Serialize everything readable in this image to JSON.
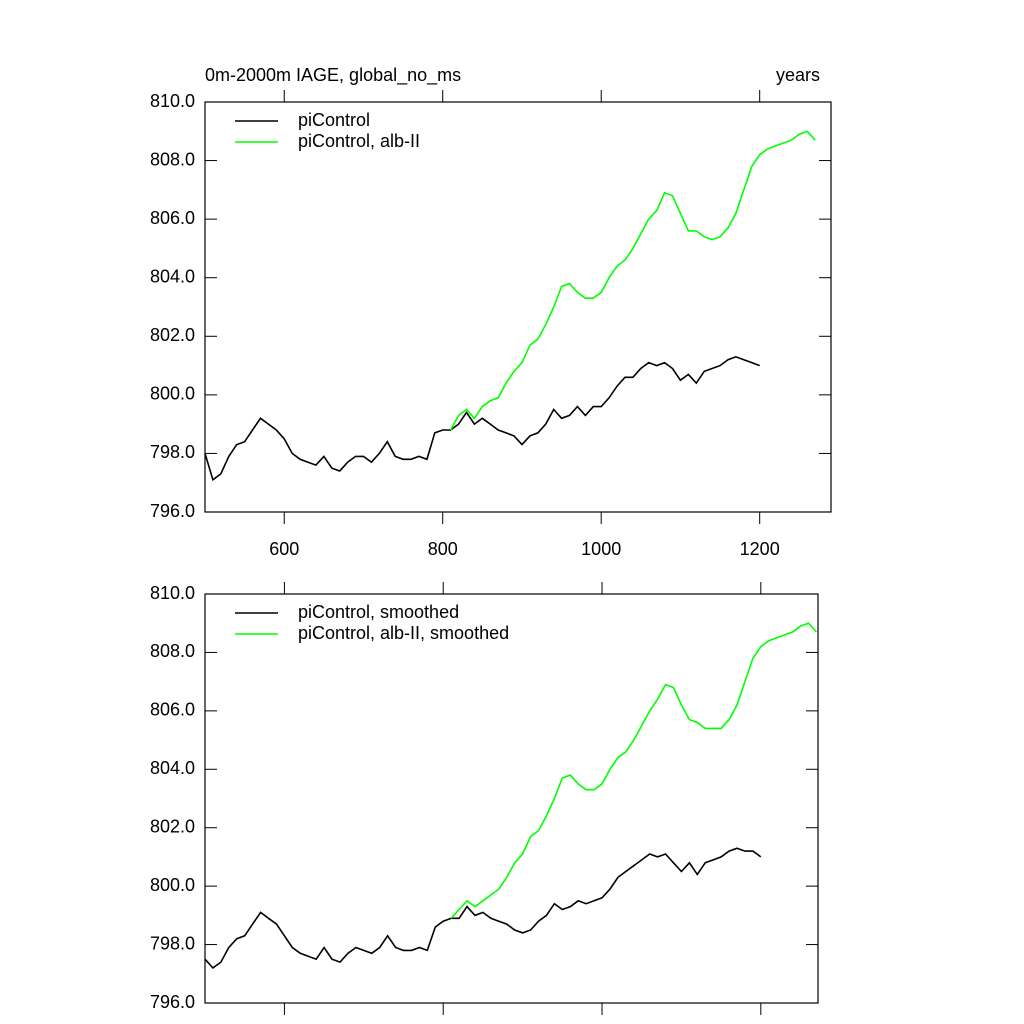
{
  "chart_data": [
    {
      "type": "line",
      "title": "0m-2000m IAGE, global_no_ms",
      "right_title": "years",
      "xlim": [
        500,
        1290
      ],
      "xticks": [
        600,
        800,
        1000,
        1200
      ],
      "xtick_labels": true,
      "ylim": [
        796,
        810
      ],
      "yticks": [
        {
          "value": 796,
          "label": "796.0"
        },
        {
          "value": 798,
          "label": "798.0"
        },
        {
          "value": 800,
          "label": "800.0"
        },
        {
          "value": 802,
          "label": "802.0"
        },
        {
          "value": 804,
          "label": "804.0"
        },
        {
          "value": 806,
          "label": "806.0"
        },
        {
          "value": 808,
          "label": "808.0"
        },
        {
          "value": 810,
          "label": "810.0"
        }
      ],
      "legend": "upper left",
      "series": [
        {
          "name": "piControl",
          "color": "#000000",
          "x": [
            500,
            510,
            520,
            530,
            540,
            550,
            560,
            570,
            580,
            590,
            600,
            610,
            620,
            630,
            640,
            650,
            660,
            670,
            680,
            690,
            700,
            710,
            720,
            730,
            740,
            750,
            760,
            770,
            780,
            790,
            800,
            810,
            820,
            830,
            840,
            850,
            860,
            870,
            880,
            890,
            900,
            910,
            920,
            930,
            940,
            950,
            960,
            970,
            980,
            990,
            1000,
            1010,
            1020,
            1030,
            1040,
            1050,
            1060,
            1070,
            1080,
            1090,
            1100,
            1110,
            1120,
            1130,
            1140,
            1150,
            1160,
            1170,
            1180,
            1190,
            1200
          ],
          "values": [
            798.0,
            797.1,
            797.3,
            797.9,
            798.3,
            798.4,
            798.8,
            799.2,
            799.0,
            798.8,
            798.5,
            798.0,
            797.8,
            797.7,
            797.6,
            797.9,
            797.5,
            797.4,
            797.7,
            797.9,
            797.9,
            797.7,
            798.0,
            798.4,
            797.9,
            797.8,
            797.8,
            797.9,
            797.8,
            798.7,
            798.8,
            798.8,
            799.0,
            799.4,
            799.0,
            799.2,
            799.0,
            798.8,
            798.7,
            798.6,
            798.3,
            798.6,
            798.7,
            799.0,
            799.5,
            799.2,
            799.3,
            799.6,
            799.3,
            799.6,
            799.6,
            799.9,
            800.3,
            800.6,
            800.6,
            800.9,
            801.1,
            801.0,
            801.1,
            800.9,
            800.5,
            800.7,
            800.4,
            800.8,
            800.9,
            801.0,
            801.2,
            801.3,
            801.2,
            801.1,
            801.0
          ]
        },
        {
          "name": "piControl, alb-II",
          "color": "#00ff00",
          "x": [
            810,
            820,
            830,
            840,
            850,
            860,
            870,
            880,
            890,
            900,
            910,
            920,
            930,
            940,
            950,
            960,
            970,
            980,
            990,
            1000,
            1010,
            1020,
            1030,
            1040,
            1050,
            1060,
            1070,
            1080,
            1090,
            1100,
            1110,
            1120,
            1130,
            1140,
            1150,
            1160,
            1170,
            1180,
            1190,
            1200,
            1210,
            1220,
            1230,
            1240,
            1250,
            1260,
            1270
          ],
          "values": [
            798.8,
            799.3,
            799.5,
            799.2,
            799.6,
            799.8,
            799.9,
            800.4,
            800.8,
            801.1,
            801.7,
            801.9,
            802.4,
            803.0,
            803.7,
            803.8,
            803.5,
            803.3,
            803.3,
            803.5,
            804.0,
            804.4,
            804.6,
            805.0,
            805.5,
            806.0,
            806.3,
            806.9,
            806.8,
            806.2,
            805.6,
            805.6,
            805.4,
            805.3,
            805.4,
            805.7,
            806.2,
            807.0,
            807.8,
            808.2,
            808.4,
            808.5,
            808.6,
            808.7,
            808.9,
            809.0,
            808.7
          ]
        }
      ]
    },
    {
      "type": "line",
      "xlim": [
        500,
        1272
      ],
      "xticks": [
        600,
        800,
        1000,
        1200
      ],
      "xtick_labels": false,
      "ylim": [
        796,
        810
      ],
      "yticks": [
        {
          "value": 796,
          "label": "796.0"
        },
        {
          "value": 798,
          "label": "798.0"
        },
        {
          "value": 800,
          "label": "800.0"
        },
        {
          "value": 802,
          "label": "802.0"
        },
        {
          "value": 804,
          "label": "804.0"
        },
        {
          "value": 806,
          "label": "806.0"
        },
        {
          "value": 808,
          "label": "808.0"
        },
        {
          "value": 810,
          "label": "810.0"
        }
      ],
      "legend": "upper left",
      "series": [
        {
          "name": "piControl, smoothed",
          "color": "#000000",
          "x": [
            500,
            510,
            520,
            530,
            540,
            550,
            560,
            570,
            580,
            590,
            600,
            610,
            620,
            630,
            640,
            650,
            660,
            670,
            680,
            690,
            700,
            710,
            720,
            730,
            740,
            750,
            760,
            770,
            780,
            790,
            800,
            810,
            820,
            830,
            840,
            850,
            860,
            870,
            880,
            890,
            900,
            910,
            920,
            930,
            940,
            950,
            960,
            970,
            980,
            990,
            1000,
            1010,
            1020,
            1030,
            1040,
            1050,
            1060,
            1070,
            1080,
            1090,
            1100,
            1110,
            1120,
            1130,
            1140,
            1150,
            1160,
            1170,
            1180,
            1190,
            1200
          ],
          "values": [
            797.5,
            797.2,
            797.4,
            797.9,
            798.2,
            798.3,
            798.7,
            799.1,
            798.9,
            798.7,
            798.3,
            797.9,
            797.7,
            797.6,
            797.5,
            797.9,
            797.5,
            797.4,
            797.7,
            797.9,
            797.8,
            797.7,
            797.9,
            798.3,
            797.9,
            797.8,
            797.8,
            797.9,
            797.8,
            798.6,
            798.8,
            798.9,
            798.9,
            799.3,
            799.0,
            799.1,
            798.9,
            798.8,
            798.7,
            798.5,
            798.4,
            798.5,
            798.8,
            799.0,
            799.4,
            799.2,
            799.3,
            799.5,
            799.4,
            799.5,
            799.6,
            799.9,
            800.3,
            800.5,
            800.7,
            800.9,
            801.1,
            801.0,
            801.1,
            800.8,
            800.5,
            800.8,
            800.4,
            800.8,
            800.9,
            801.0,
            801.2,
            801.3,
            801.2,
            801.2,
            801.0
          ]
        },
        {
          "name": "piControl, alb-II, smoothed",
          "color": "#00ff00",
          "x": [
            810,
            820,
            830,
            840,
            850,
            860,
            870,
            880,
            890,
            900,
            910,
            920,
            930,
            940,
            950,
            960,
            970,
            980,
            990,
            1000,
            1010,
            1020,
            1030,
            1040,
            1050,
            1060,
            1070,
            1080,
            1090,
            1100,
            1110,
            1120,
            1130,
            1140,
            1150,
            1160,
            1170,
            1180,
            1190,
            1200,
            1210,
            1220,
            1230,
            1240,
            1250,
            1260,
            1270
          ],
          "values": [
            798.9,
            799.2,
            799.5,
            799.3,
            799.5,
            799.7,
            799.9,
            800.3,
            800.8,
            801.1,
            801.7,
            801.9,
            802.4,
            803.0,
            803.7,
            803.8,
            803.5,
            803.3,
            803.3,
            803.5,
            804.0,
            804.4,
            804.6,
            805.0,
            805.5,
            806.0,
            806.4,
            806.9,
            806.8,
            806.2,
            805.7,
            805.6,
            805.4,
            805.4,
            805.4,
            805.7,
            806.2,
            807.0,
            807.8,
            808.2,
            808.4,
            808.5,
            808.6,
            808.7,
            808.9,
            809.0,
            808.7
          ]
        }
      ]
    }
  ]
}
